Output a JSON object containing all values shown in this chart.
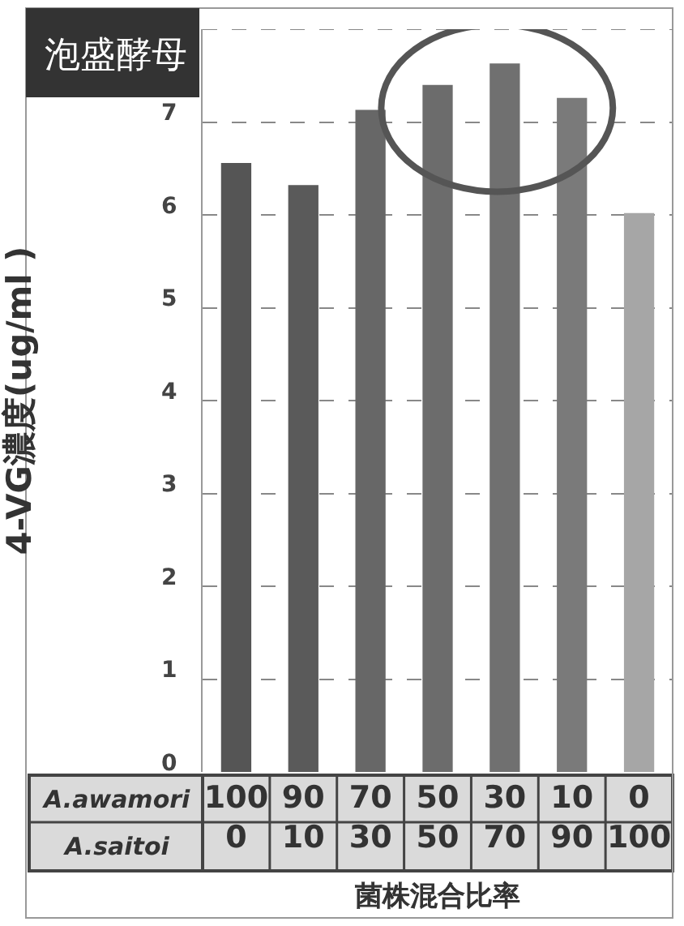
{
  "chart_data": {
    "type": "bar",
    "title": "泡盛酵母",
    "ylabel": "4-VG濃度(ug/ml )",
    "xlabel": "菌株混合比率",
    "categories": [
      "100\n0",
      "90\n10",
      "70\n30",
      "50\n50",
      "30\n70",
      "10\n90",
      "0\n100"
    ],
    "values": [
      6.56,
      6.32,
      7.13,
      7.4,
      7.63,
      7.26,
      6.02
    ],
    "colors": [
      "#555555",
      "#5a5a5a",
      "#676767",
      "#6c6c6c",
      "#707070",
      "#7a7a7a",
      "#a6a6a6"
    ],
    "annotations": [
      "A.awamori",
      "A.saitoi"
    ],
    "ylim": [
      0,
      8
    ],
    "yticks": [
      0,
      1,
      2,
      3,
      4,
      5,
      6,
      7,
      {
        "value": 8,
        "label": null
      }
    ],
    "grid": "y"
  }
}
